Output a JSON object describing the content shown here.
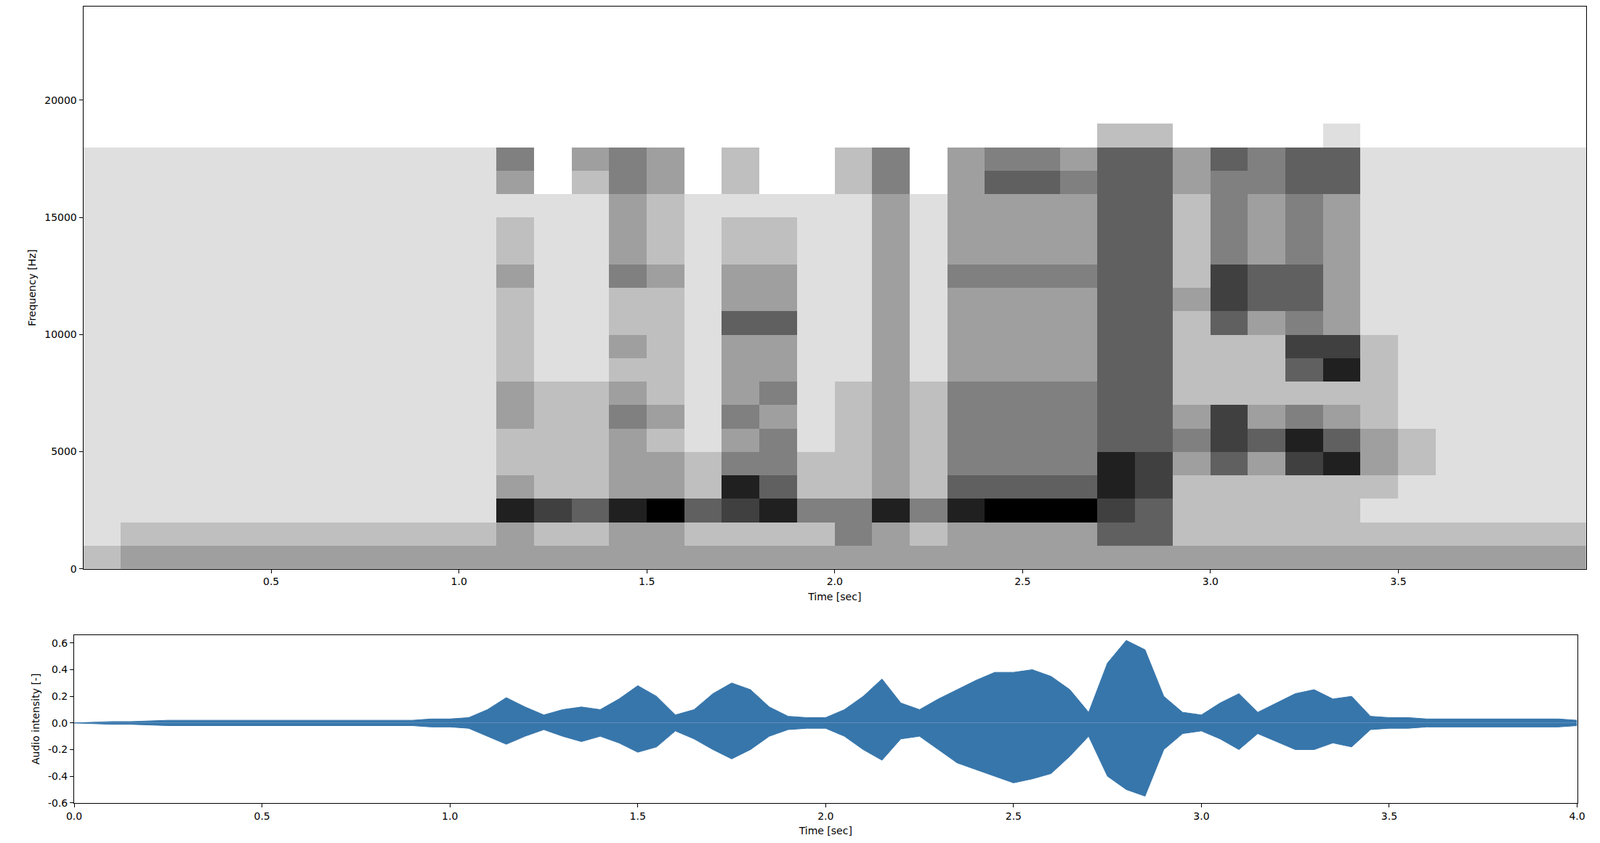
{
  "chart_data": [
    {
      "type": "heatmap",
      "xlabel": "Time [sec]",
      "ylabel": "Frequency [Hz]",
      "color": "#000000",
      "xlim": [
        0,
        4
      ],
      "ylim": [
        0,
        24000
      ],
      "xticks": [
        0.5,
        {
          "value": 1,
          "label": "1.0"
        },
        1.5,
        {
          "value": 2,
          "label": "2.0"
        },
        2.5,
        {
          "value": 3,
          "label": "3.0"
        },
        3.5
      ],
      "yticks": [
        0,
        5000,
        10000,
        15000,
        20000
      ],
      "x": [
        0.05,
        0.15,
        0.25,
        0.35,
        0.45,
        0.55,
        0.65,
        0.75,
        0.85,
        0.95,
        1.05,
        1.15,
        1.25,
        1.35,
        1.45,
        1.55,
        1.65,
        1.75,
        1.85,
        1.95,
        2.05,
        2.15,
        2.25,
        2.35,
        2.45,
        2.55,
        2.65,
        2.75,
        2.85,
        2.95,
        3.05,
        3.15,
        3.25,
        3.35,
        3.45,
        3.55,
        3.65,
        3.75,
        3.85,
        3.95
      ],
      "y": [
        500,
        1500,
        2500,
        3500,
        4500,
        5500,
        6500,
        7500,
        8500,
        9500,
        10500,
        11500,
        12500,
        13500,
        14500,
        15500,
        16500,
        17500,
        18500,
        19500,
        20500,
        21500,
        22500,
        23500
      ],
      "z": [
        [
          2,
          3,
          3,
          3,
          3,
          3,
          3,
          3,
          3,
          3,
          3,
          3,
          3,
          3,
          3,
          3,
          3,
          3,
          3,
          3,
          3,
          3,
          3,
          3,
          3,
          3,
          3,
          3,
          3,
          3,
          3,
          3,
          3,
          3,
          3,
          3,
          3,
          3,
          3,
          3
        ],
        [
          1,
          2,
          2,
          2,
          2,
          2,
          2,
          2,
          2,
          2,
          2,
          3,
          2,
          2,
          3,
          3,
          2,
          2,
          2,
          2,
          4,
          3,
          2,
          3,
          3,
          3,
          3,
          5,
          5,
          2,
          2,
          2,
          2,
          2,
          2,
          2,
          2,
          2,
          2,
          2
        ],
        [
          1,
          1,
          1,
          1,
          1,
          1,
          1,
          1,
          1,
          1,
          1,
          7,
          6,
          5,
          7,
          8,
          5,
          6,
          7,
          4,
          4,
          7,
          4,
          7,
          8,
          8,
          8,
          6,
          5,
          2,
          2,
          2,
          2,
          2,
          1,
          1,
          1,
          1,
          1,
          1
        ],
        [
          1,
          1,
          1,
          1,
          1,
          1,
          1,
          1,
          1,
          1,
          1,
          3,
          2,
          2,
          3,
          3,
          2,
          7,
          5,
          2,
          2,
          3,
          2,
          5,
          5,
          5,
          5,
          7,
          6,
          2,
          2,
          2,
          2,
          2,
          2,
          1,
          1,
          1,
          1,
          1
        ],
        [
          1,
          1,
          1,
          1,
          1,
          1,
          1,
          1,
          1,
          1,
          1,
          2,
          2,
          2,
          3,
          3,
          2,
          4,
          4,
          2,
          2,
          3,
          2,
          4,
          4,
          4,
          4,
          7,
          6,
          3,
          5,
          3,
          6,
          7,
          3,
          2,
          1,
          1,
          1,
          1
        ],
        [
          1,
          1,
          1,
          1,
          1,
          1,
          1,
          1,
          1,
          1,
          1,
          2,
          2,
          2,
          3,
          2,
          1,
          3,
          4,
          1,
          2,
          3,
          2,
          4,
          4,
          4,
          4,
          5,
          5,
          4,
          6,
          5,
          7,
          5,
          3,
          2,
          1,
          1,
          1,
          1
        ],
        [
          1,
          1,
          1,
          1,
          1,
          1,
          1,
          1,
          1,
          1,
          1,
          3,
          2,
          2,
          4,
          3,
          1,
          4,
          3,
          1,
          2,
          3,
          2,
          4,
          4,
          4,
          4,
          5,
          5,
          3,
          6,
          3,
          4,
          3,
          2,
          1,
          1,
          1,
          1,
          1
        ],
        [
          1,
          1,
          1,
          1,
          1,
          1,
          1,
          1,
          1,
          1,
          1,
          3,
          2,
          2,
          3,
          2,
          1,
          3,
          4,
          1,
          2,
          3,
          2,
          4,
          4,
          4,
          4,
          5,
          5,
          2,
          2,
          2,
          2,
          2,
          2,
          1,
          1,
          1,
          1,
          1
        ],
        [
          1,
          1,
          1,
          1,
          1,
          1,
          1,
          1,
          1,
          1,
          1,
          2,
          1,
          1,
          2,
          2,
          1,
          3,
          3,
          1,
          1,
          3,
          1,
          3,
          3,
          3,
          3,
          5,
          5,
          2,
          2,
          2,
          5,
          7,
          2,
          1,
          1,
          1,
          1,
          1
        ],
        [
          1,
          1,
          1,
          1,
          1,
          1,
          1,
          1,
          1,
          1,
          1,
          2,
          1,
          1,
          3,
          2,
          1,
          3,
          3,
          1,
          1,
          3,
          1,
          3,
          3,
          3,
          3,
          5,
          5,
          2,
          2,
          2,
          6,
          6,
          2,
          1,
          1,
          1,
          1,
          1
        ],
        [
          1,
          1,
          1,
          1,
          1,
          1,
          1,
          1,
          1,
          1,
          1,
          2,
          1,
          1,
          2,
          2,
          1,
          5,
          5,
          1,
          1,
          3,
          1,
          3,
          3,
          3,
          3,
          5,
          5,
          2,
          5,
          3,
          4,
          3,
          1,
          1,
          1,
          1,
          1,
          1
        ],
        [
          1,
          1,
          1,
          1,
          1,
          1,
          1,
          1,
          1,
          1,
          1,
          2,
          1,
          1,
          2,
          2,
          1,
          3,
          3,
          1,
          1,
          3,
          1,
          3,
          3,
          3,
          3,
          5,
          5,
          3,
          6,
          5,
          5,
          3,
          1,
          1,
          1,
          1,
          1,
          1
        ],
        [
          1,
          1,
          1,
          1,
          1,
          1,
          1,
          1,
          1,
          1,
          1,
          3,
          1,
          1,
          4,
          3,
          1,
          3,
          3,
          1,
          1,
          3,
          1,
          4,
          4,
          4,
          4,
          5,
          5,
          2,
          6,
          5,
          5,
          3,
          1,
          1,
          1,
          1,
          1,
          1
        ],
        [
          1,
          1,
          1,
          1,
          1,
          1,
          1,
          1,
          1,
          1,
          1,
          2,
          1,
          1,
          3,
          2,
          1,
          2,
          2,
          1,
          1,
          3,
          1,
          3,
          3,
          3,
          3,
          5,
          5,
          2,
          4,
          3,
          4,
          3,
          1,
          1,
          1,
          1,
          1,
          1
        ],
        [
          1,
          1,
          1,
          1,
          1,
          1,
          1,
          1,
          1,
          1,
          1,
          2,
          1,
          1,
          3,
          2,
          1,
          2,
          2,
          1,
          1,
          3,
          1,
          3,
          3,
          3,
          3,
          5,
          5,
          2,
          4,
          3,
          4,
          3,
          1,
          1,
          1,
          1,
          1,
          1
        ],
        [
          1,
          1,
          1,
          1,
          1,
          1,
          1,
          1,
          1,
          1,
          1,
          1,
          1,
          1,
          3,
          2,
          1,
          1,
          1,
          1,
          1,
          3,
          1,
          3,
          3,
          3,
          3,
          5,
          5,
          2,
          4,
          3,
          4,
          3,
          1,
          1,
          1,
          1,
          1,
          1
        ],
        [
          1,
          1,
          1,
          1,
          1,
          1,
          1,
          1,
          1,
          1,
          1,
          3,
          0,
          2,
          4,
          3,
          0,
          2,
          0,
          0,
          2,
          4,
          0,
          3,
          5,
          5,
          4,
          5,
          5,
          3,
          4,
          4,
          5,
          5,
          1,
          1,
          1,
          1,
          1,
          1
        ],
        [
          1,
          1,
          1,
          1,
          1,
          1,
          1,
          1,
          1,
          1,
          1,
          4,
          0,
          3,
          4,
          3,
          0,
          2,
          0,
          0,
          2,
          4,
          0,
          3,
          4,
          4,
          3,
          5,
          5,
          3,
          5,
          4,
          5,
          5,
          1,
          1,
          1,
          1,
          1,
          1
        ],
        [
          0,
          0,
          0,
          0,
          0,
          0,
          0,
          0,
          0,
          0,
          0,
          0,
          0,
          0,
          0,
          0,
          0,
          0,
          0,
          0,
          0,
          0,
          0,
          0,
          0,
          0,
          0,
          2,
          2,
          0,
          0,
          0,
          0,
          1,
          0,
          0,
          0,
          0,
          0,
          0
        ],
        [
          0,
          0,
          0,
          0,
          0,
          0,
          0,
          0,
          0,
          0,
          0,
          0,
          0,
          0,
          0,
          0,
          0,
          0,
          0,
          0,
          0,
          0,
          0,
          0,
          0,
          0,
          0,
          0,
          0,
          0,
          0,
          0,
          0,
          0,
          0,
          0,
          0,
          0,
          0,
          0
        ],
        [
          0,
          0,
          0,
          0,
          0,
          0,
          0,
          0,
          0,
          0,
          0,
          0,
          0,
          0,
          0,
          0,
          0,
          0,
          0,
          0,
          0,
          0,
          0,
          0,
          0,
          0,
          0,
          0,
          0,
          0,
          0,
          0,
          0,
          0,
          0,
          0,
          0,
          0,
          0,
          0
        ],
        [
          0,
          0,
          0,
          0,
          0,
          0,
          0,
          0,
          0,
          0,
          0,
          0,
          0,
          0,
          0,
          0,
          0,
          0,
          0,
          0,
          0,
          0,
          0,
          0,
          0,
          0,
          0,
          0,
          0,
          0,
          0,
          0,
          0,
          0,
          0,
          0,
          0,
          0,
          0,
          0
        ],
        [
          0,
          0,
          0,
          0,
          0,
          0,
          0,
          0,
          0,
          0,
          0,
          0,
          0,
          0,
          0,
          0,
          0,
          0,
          0,
          0,
          0,
          0,
          0,
          0,
          0,
          0,
          0,
          0,
          0,
          0,
          0,
          0,
          0,
          0,
          0,
          0,
          0,
          0,
          0,
          0
        ],
        [
          0,
          0,
          0,
          0,
          0,
          0,
          0,
          0,
          0,
          0,
          0,
          0,
          0,
          0,
          0,
          0,
          0,
          0,
          0,
          0,
          0,
          0,
          0,
          0,
          0,
          0,
          0,
          0,
          0,
          0,
          0,
          0,
          0,
          0,
          0,
          0,
          0,
          0,
          0,
          0
        ]
      ]
    },
    {
      "type": "line",
      "xlabel": "Time [sec]",
      "ylabel": "Audio intensity [-]",
      "xlim": [
        0,
        4
      ],
      "ylim": [
        -0.6,
        0.66
      ],
      "xticks": [
        {
          "value": 0,
          "label": "0.0"
        },
        0.5,
        {
          "value": 1,
          "label": "1.0"
        },
        1.5,
        {
          "value": 2,
          "label": "2.0"
        },
        2.5,
        {
          "value": 3,
          "label": "3.0"
        },
        3.5,
        {
          "value": 4,
          "label": "4.0"
        }
      ],
      "yticks": [
        -0.6,
        -0.4,
        -0.2,
        {
          "value": 0,
          "label": "0.0"
        },
        0.2,
        0.4,
        0.6
      ],
      "x": [
        0,
        0.05,
        0.1,
        0.15,
        0.2,
        0.25,
        0.3,
        0.35,
        0.4,
        0.45,
        0.5,
        0.55,
        0.6,
        0.65,
        0.7,
        0.75,
        0.8,
        0.85,
        0.9,
        0.95,
        1,
        1.05,
        1.1,
        1.15,
        1.2,
        1.25,
        1.3,
        1.35,
        1.4,
        1.45,
        1.5,
        1.55,
        1.6,
        1.65,
        1.7,
        1.75,
        1.8,
        1.85,
        1.9,
        1.95,
        2,
        2.05,
        2.1,
        2.15,
        2.2,
        2.25,
        2.3,
        2.35,
        2.4,
        2.45,
        2.5,
        2.55,
        2.6,
        2.65,
        2.7,
        2.75,
        2.8,
        2.85,
        2.9,
        2.95,
        3,
        3.05,
        3.1,
        3.15,
        3.2,
        3.25,
        3.3,
        3.35,
        3.4,
        3.45,
        3.5,
        3.55,
        3.6,
        3.65,
        3.7,
        3.75,
        3.8,
        3.85,
        3.9,
        3.95,
        4
      ],
      "series": [
        {
          "color": "#3776ab",
          "values": [
            0,
            0.005,
            0.01,
            0.01,
            0.015,
            0.02,
            0.02,
            0.02,
            0.02,
            0.02,
            0.02,
            0.02,
            0.02,
            0.02,
            0.02,
            0.02,
            0.02,
            0.02,
            0.02,
            0.03,
            0.03,
            0.04,
            0.1,
            0.19,
            0.12,
            0.06,
            0.1,
            0.12,
            0.1,
            0.18,
            0.28,
            0.2,
            0.06,
            0.1,
            0.22,
            0.3,
            0.25,
            0.12,
            0.05,
            0.04,
            0.04,
            0.1,
            0.2,
            0.33,
            0.15,
            0.1,
            0.18,
            0.25,
            0.32,
            0.38,
            0.38,
            0.4,
            0.35,
            0.25,
            0.08,
            0.45,
            0.62,
            0.55,
            0.2,
            0.08,
            0.06,
            0.15,
            0.22,
            0.08,
            0.15,
            0.22,
            0.25,
            0.18,
            0.2,
            0.05,
            0.04,
            0.04,
            0.03,
            0.03,
            0.03,
            0.03,
            0.03,
            0.03,
            0.03,
            0.03,
            0.02
          ]
        },
        {
          "color": "#3776ab",
          "values": [
            0,
            -0.005,
            -0.01,
            -0.01,
            -0.015,
            -0.02,
            -0.02,
            -0.02,
            -0.02,
            -0.02,
            -0.02,
            -0.02,
            -0.02,
            -0.02,
            -0.02,
            -0.02,
            -0.02,
            -0.02,
            -0.02,
            -0.03,
            -0.03,
            -0.04,
            -0.1,
            -0.16,
            -0.1,
            -0.05,
            -0.1,
            -0.14,
            -0.1,
            -0.15,
            -0.22,
            -0.18,
            -0.06,
            -0.12,
            -0.2,
            -0.27,
            -0.2,
            -0.1,
            -0.05,
            -0.04,
            -0.04,
            -0.1,
            -0.2,
            -0.28,
            -0.12,
            -0.1,
            -0.2,
            -0.3,
            -0.35,
            -0.4,
            -0.45,
            -0.42,
            -0.38,
            -0.25,
            -0.1,
            -0.4,
            -0.5,
            -0.55,
            -0.2,
            -0.08,
            -0.06,
            -0.12,
            -0.2,
            -0.08,
            -0.14,
            -0.2,
            -0.2,
            -0.15,
            -0.18,
            -0.05,
            -0.04,
            -0.04,
            -0.03,
            -0.03,
            -0.03,
            -0.03,
            -0.03,
            -0.03,
            -0.03,
            -0.03,
            -0.02
          ]
        }
      ]
    }
  ]
}
